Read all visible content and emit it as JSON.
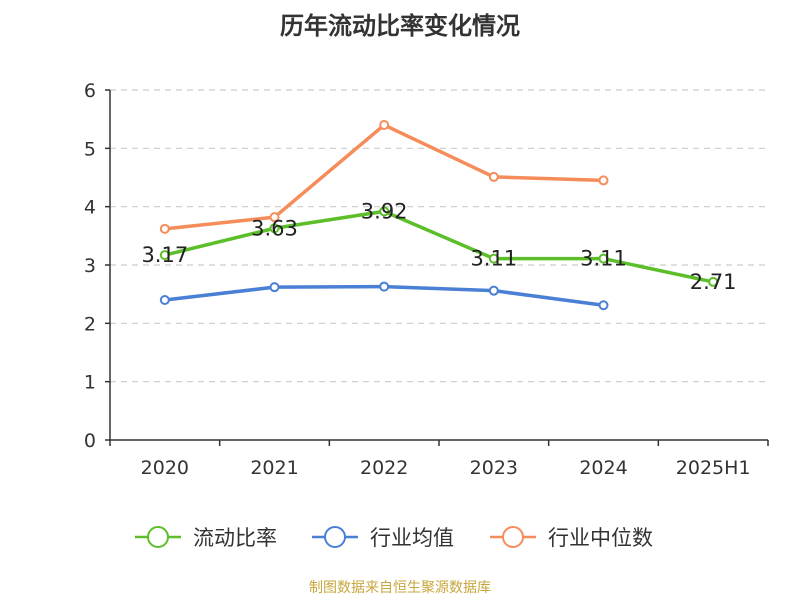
{
  "title": "历年流动比率变化情况",
  "source": "制图数据来自恒生聚源数据库",
  "colors": {
    "axis": "#333333",
    "grid": "#cccccc",
    "text": "#333333",
    "source": "#c9a63c"
  },
  "chart_data": {
    "type": "line",
    "categories": [
      "2020",
      "2021",
      "2022",
      "2023",
      "2024",
      "2025H1"
    ],
    "ylim": [
      0,
      6
    ],
    "yticks": [
      "0",
      "1",
      "2",
      "3",
      "4",
      "5",
      "6"
    ],
    "grid": true,
    "legend_position": "bottom",
    "series": [
      {
        "name": "流动比率",
        "color": "#5cbf2a",
        "values": [
          3.17,
          3.63,
          3.92,
          3.11,
          3.11,
          2.71
        ],
        "labels": [
          "3.17",
          "3.63",
          "3.92",
          "3.11",
          "3.11",
          "2.71"
        ]
      },
      {
        "name": "行业均值",
        "color": "#4a7fd6",
        "values": [
          2.4,
          2.62,
          2.63,
          2.56,
          2.31,
          null
        ]
      },
      {
        "name": "行业中位数",
        "color": "#f58c5a",
        "values": [
          3.62,
          3.82,
          5.4,
          4.51,
          4.45,
          null
        ]
      }
    ]
  }
}
